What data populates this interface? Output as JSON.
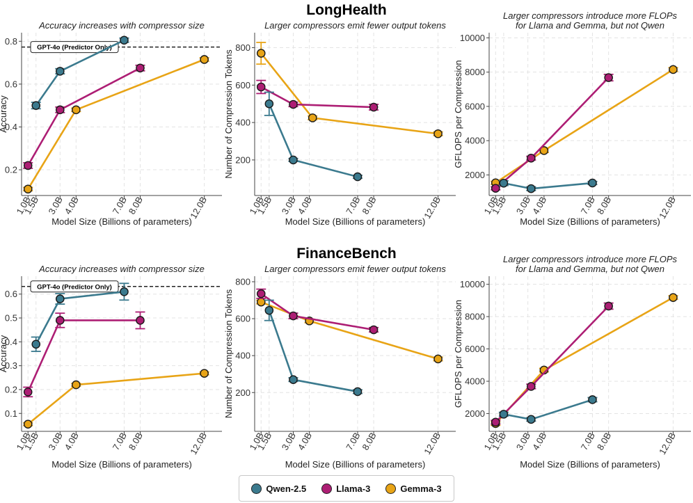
{
  "figure": {
    "sections": [
      {
        "title": "LongHealth",
        "chart_data": [
          {
            "type": "line",
            "title": "Accuracy increases with compressor size",
            "xlabel": "Model Size (Billions of parameters)",
            "ylabel": "Accuracy",
            "xlim": [
              0.6,
              13.1
            ],
            "ylim": [
              0.08,
              0.84
            ],
            "x_ticks": [
              1,
              1.5,
              3,
              4,
              7,
              8,
              12
            ],
            "x_tick_labels": [
              "1.0B",
              "1.5B",
              "3.0B",
              "4.0B",
              "7.0B",
              "8.0B",
              "12.0B"
            ],
            "y_ticks": [
              0.2,
              0.4,
              0.6,
              0.8
            ],
            "y_tick_labels": [
              "0.2",
              "0.4",
              "0.6",
              "0.8"
            ],
            "reference_line": {
              "label": "GPT-4o (Predictor Only)",
              "value": 0.773
            },
            "series": [
              {
                "name": "Qwen-2.5",
                "x": [
                  1.5,
                  3,
                  7
                ],
                "values": [
                  0.5,
                  0.66,
                  0.805
                ],
                "errors": [
                  0.015,
                  0.012,
                  0.01
                ]
              },
              {
                "name": "Llama-3",
                "x": [
                  1,
                  3,
                  8
                ],
                "values": [
                  0.22,
                  0.48,
                  0.675
                ],
                "errors": [
                  0.013,
                  0.013,
                  0.013
                ]
              },
              {
                "name": "Gemma-3",
                "x": [
                  1,
                  4,
                  12
                ],
                "values": [
                  0.11,
                  0.48,
                  0.715
                ],
                "errors": [
                  0.008,
                  0.008,
                  0.008
                ]
              }
            ]
          },
          {
            "type": "line",
            "title": "Larger compressors emit fewer output tokens",
            "xlabel": "Model Size (Billions of parameters)",
            "ylabel": "Number of Compression Tokens",
            "xlim": [
              0.6,
              13.1
            ],
            "ylim": [
              10,
              880
            ],
            "x_ticks": [
              1,
              1.5,
              3,
              4,
              7,
              8,
              12
            ],
            "x_tick_labels": [
              "1.0B",
              "1.5B",
              "3.0B",
              "4.0B",
              "7.0B",
              "8.0B",
              "12.0B"
            ],
            "y_ticks": [
              200,
              400,
              600,
              800
            ],
            "y_tick_labels": [
              "200",
              "400",
              "600",
              "800"
            ],
            "series": [
              {
                "name": "Qwen-2.5",
                "x": [
                  1.5,
                  3,
                  7
                ],
                "values": [
                  500,
                  200,
                  110
                ],
                "errors": [
                  62,
                  8,
                  8
                ]
              },
              {
                "name": "Llama-3",
                "x": [
                  1,
                  3,
                  8
                ],
                "values": [
                  590,
                  497,
                  482
                ],
                "errors": [
                  35,
                  12,
                  15
                ]
              },
              {
                "name": "Gemma-3",
                "x": [
                  1,
                  4.2,
                  12
                ],
                "values": [
                  770,
                  425,
                  340
                ],
                "errors": [
                  58,
                  10,
                  10
                ]
              }
            ]
          },
          {
            "type": "line",
            "title": "Larger compressors introduce more FLOPs",
            "subtitle": "for Llama and Gemma, but not Qwen",
            "xlabel": "Model Size (Billions of parameters)",
            "ylabel": "GFLOPS per Compression",
            "xlim": [
              0.6,
              13.1
            ],
            "ylim": [
              800,
              10300
            ],
            "x_ticks": [
              1,
              1.5,
              3,
              4,
              7,
              8,
              12
            ],
            "x_tick_labels": [
              "1.0B",
              "1.5B",
              "3.0B",
              "4.0B",
              "7.0B",
              "8.0B",
              "12.0B"
            ],
            "y_ticks": [
              2000,
              4000,
              6000,
              8000,
              10000
            ],
            "y_tick_labels": [
              "2000",
              "4000",
              "6000",
              "8000",
              "10000"
            ],
            "series": [
              {
                "name": "Qwen-2.5",
                "x": [
                  1.5,
                  3.2,
                  7
                ],
                "values": [
                  1520,
                  1200,
                  1530
                ],
                "errors": [
                  140,
                  110,
                  90
                ]
              },
              {
                "name": "Llama-3",
                "x": [
                  1,
                  3.2,
                  8
                ],
                "values": [
                  1220,
                  2980,
                  7680
                ],
                "errors": [
                  90,
                  110,
                  190
                ]
              },
              {
                "name": "Gemma-3",
                "x": [
                  1,
                  4,
                  12
                ],
                "values": [
                  1540,
                  3420,
                  8150
                ],
                "errors": [
                  90,
                  110,
                  110
                ]
              }
            ]
          }
        ]
      },
      {
        "title": "FinanceBench",
        "chart_data": [
          {
            "type": "line",
            "title": "Accuracy increases with compressor size",
            "xlabel": "Model Size (Billions of parameters)",
            "ylabel": "Accuracy",
            "xlim": [
              0.6,
              13.1
            ],
            "ylim": [
              0.025,
              0.675
            ],
            "x_ticks": [
              1,
              1.5,
              3,
              4,
              7,
              8,
              12
            ],
            "x_tick_labels": [
              "1.0B",
              "1.5B",
              "3.0B",
              "4.0B",
              "7.0B",
              "8.0B",
              "12.0B"
            ],
            "y_ticks": [
              0.1,
              0.2,
              0.3,
              0.4,
              0.5,
              0.6
            ],
            "y_tick_labels": [
              "0.1",
              "0.2",
              "0.3",
              "0.4",
              "0.5",
              "0.6"
            ],
            "reference_line": {
              "label": "GPT-4o (Predictor Only)",
              "value": 0.632
            },
            "series": [
              {
                "name": "Qwen-2.5",
                "x": [
                  1.5,
                  3,
                  7
                ],
                "values": [
                  0.39,
                  0.58,
                  0.61
                ],
                "errors": [
                  0.03,
                  0.022,
                  0.035
                ]
              },
              {
                "name": "Llama-3",
                "x": [
                  1,
                  3,
                  8
                ],
                "values": [
                  0.19,
                  0.49,
                  0.49
                ],
                "errors": [
                  0.02,
                  0.03,
                  0.035
                ]
              },
              {
                "name": "Gemma-3",
                "x": [
                  1,
                  4,
                  12
                ],
                "values": [
                  0.055,
                  0.22,
                  0.268
                ],
                "errors": [
                  0.006,
                  0.006,
                  0.006
                ]
              }
            ]
          },
          {
            "type": "line",
            "title": "Larger compressors emit fewer output tokens",
            "xlabel": "Model Size (Billions of parameters)",
            "ylabel": "Number of Compression Tokens",
            "xlim": [
              0.6,
              13.1
            ],
            "ylim": [
              -10,
              830
            ],
            "x_ticks": [
              1,
              1.5,
              3,
              4,
              7,
              8,
              12
            ],
            "x_tick_labels": [
              "1.0B",
              "1.5B",
              "3.0B",
              "4.0B",
              "7.0B",
              "8.0B",
              "12.0B"
            ],
            "y_ticks": [
              200,
              400,
              600,
              800
            ],
            "y_tick_labels": [
              "200",
              "400",
              "600",
              "800"
            ],
            "series": [
              {
                "name": "Qwen-2.5",
                "x": [
                  1.5,
                  3,
                  7
                ],
                "values": [
                  645,
                  270,
                  205
                ],
                "errors": [
                  55,
                  10,
                  10
                ]
              },
              {
                "name": "Llama-3",
                "x": [
                  1,
                  3,
                  8
                ],
                "values": [
                  735,
                  615,
                  540
                ],
                "errors": [
                  25,
                  15,
                  12
                ]
              },
              {
                "name": "Gemma-3",
                "x": [
                  1,
                  4,
                  12
                ],
                "values": [
                  690,
                  588,
                  382
                ],
                "errors": [
                  10,
                  10,
                  10
                ]
              }
            ]
          },
          {
            "type": "line",
            "title": "Larger compressors introduce more FLOPs",
            "subtitle": "for Llama and Gemma, but not Qwen",
            "xlabel": "Model Size (Billions of parameters)",
            "ylabel": "GFLOPS per Compression",
            "xlim": [
              0.6,
              13.1
            ],
            "ylim": [
              900,
              10500
            ],
            "x_ticks": [
              1,
              1.5,
              3,
              4,
              7,
              8,
              12
            ],
            "x_tick_labels": [
              "1.0B",
              "1.5B",
              "3.0B",
              "4.0B",
              "7.0B",
              "8.0B",
              "12.0B"
            ],
            "y_ticks": [
              2000,
              4000,
              6000,
              8000,
              10000
            ],
            "y_tick_labels": [
              "2000",
              "4000",
              "6000",
              "8000",
              "10000"
            ],
            "series": [
              {
                "name": "Qwen-2.5",
                "x": [
                  1.5,
                  3.2,
                  7
                ],
                "values": [
                  1960,
                  1640,
                  2860
                ],
                "errors": [
                  120,
                  110,
                  130
                ]
              },
              {
                "name": "Llama-3",
                "x": [
                  1,
                  3.2,
                  8
                ],
                "values": [
                  1470,
                  3680,
                  8650
                ],
                "errors": [
                  110,
                  140,
                  190
                ]
              },
              {
                "name": "Gemma-3",
                "x": [
                  1,
                  4,
                  12
                ],
                "values": [
                  1380,
                  4690,
                  9180
                ],
                "errors": [
                  110,
                  110,
                  110
                ]
              }
            ]
          }
        ]
      }
    ],
    "legend": {
      "entries": [
        {
          "name": "Qwen-2.5",
          "color": "#3b7a8e"
        },
        {
          "name": "Llama-3",
          "color": "#ad1e74"
        },
        {
          "name": "Gemma-3",
          "color": "#e8a416"
        }
      ]
    },
    "colors": {
      "Qwen-2.5": "#3b7a8e",
      "Llama-3": "#ad1e74",
      "Gemma-3": "#e8a416"
    }
  }
}
